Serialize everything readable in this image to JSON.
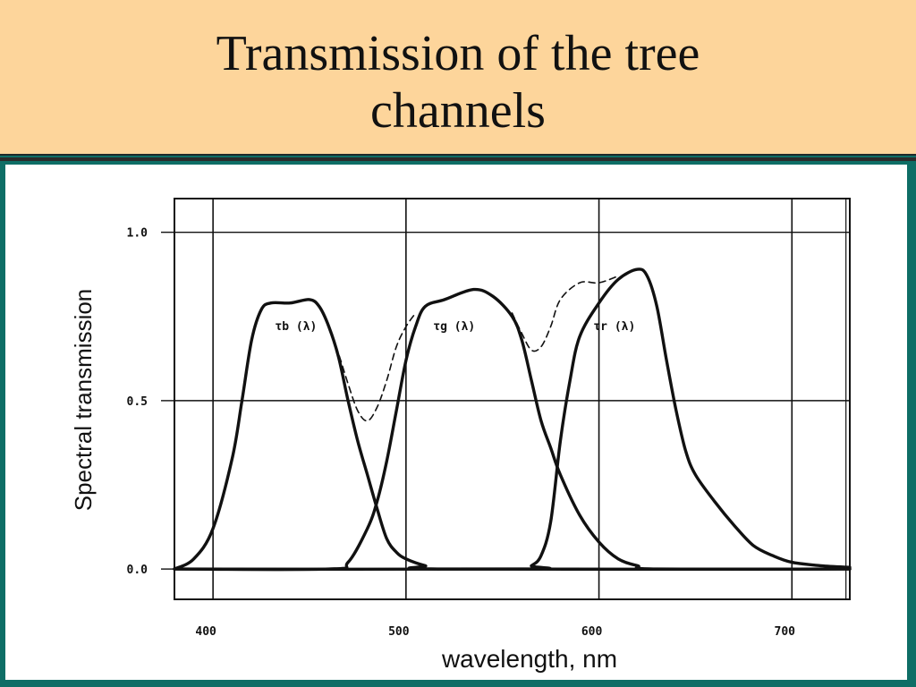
{
  "slide": {
    "title_line1": "Transmission of the tree",
    "title_line2": "channels"
  },
  "colors": {
    "header_bg": "#fdd59b",
    "frame": "#0e6e66",
    "panel": "#ffffff",
    "ink": "#111111"
  },
  "chart_data": {
    "type": "line",
    "title": "",
    "xlabel": "wavelength, nm",
    "ylabel": "Spectral transmission",
    "xlim": [
      380,
      730
    ],
    "ylim": [
      -0.09,
      1.1
    ],
    "xticks": [
      {
        "value": 400,
        "label": "400"
      },
      {
        "value": 500,
        "label": "500"
      },
      {
        "value": 600,
        "label": "600"
      },
      {
        "value": 700,
        "label": "700"
      }
    ],
    "yticks": [
      {
        "value": 0.0,
        "label": "0.0"
      },
      {
        "value": 0.5,
        "label": "0.5"
      },
      {
        "value": 1.0,
        "label": "1.0"
      }
    ],
    "grid": true,
    "series": [
      {
        "name": "τb (λ)",
        "style": "solid",
        "label_at": [
          443,
          0.71
        ],
        "points": [
          [
            380,
            0.0
          ],
          [
            390,
            0.03
          ],
          [
            400,
            0.12
          ],
          [
            410,
            0.33
          ],
          [
            415,
            0.5
          ],
          [
            420,
            0.68
          ],
          [
            425,
            0.77
          ],
          [
            430,
            0.79
          ],
          [
            440,
            0.79
          ],
          [
            450,
            0.8
          ],
          [
            455,
            0.78
          ],
          [
            460,
            0.72
          ],
          [
            465,
            0.63
          ],
          [
            470,
            0.5
          ],
          [
            475,
            0.38
          ],
          [
            480,
            0.28
          ],
          [
            485,
            0.18
          ],
          [
            490,
            0.09
          ],
          [
            495,
            0.05
          ],
          [
            500,
            0.03
          ],
          [
            510,
            0.01
          ],
          [
            520,
            0.0
          ],
          [
            730,
            0.0
          ]
        ]
      },
      {
        "name": "τg (λ)",
        "style": "solid",
        "label_at": [
          525,
          0.71
        ],
        "points": [
          [
            380,
            0.0
          ],
          [
            460,
            0.0
          ],
          [
            470,
            0.02
          ],
          [
            480,
            0.12
          ],
          [
            485,
            0.2
          ],
          [
            490,
            0.32
          ],
          [
            495,
            0.47
          ],
          [
            500,
            0.62
          ],
          [
            505,
            0.72
          ],
          [
            510,
            0.78
          ],
          [
            520,
            0.8
          ],
          [
            535,
            0.83
          ],
          [
            545,
            0.81
          ],
          [
            555,
            0.75
          ],
          [
            560,
            0.68
          ],
          [
            565,
            0.56
          ],
          [
            570,
            0.44
          ],
          [
            575,
            0.36
          ],
          [
            580,
            0.28
          ],
          [
            590,
            0.16
          ],
          [
            600,
            0.08
          ],
          [
            610,
            0.03
          ],
          [
            620,
            0.01
          ],
          [
            630,
            0.0
          ],
          [
            730,
            0.0
          ]
        ]
      },
      {
        "name": "τr (λ)",
        "style": "solid",
        "label_at": [
          608,
          0.71
        ],
        "points": [
          [
            380,
            0.0
          ],
          [
            560,
            0.0
          ],
          [
            565,
            0.01
          ],
          [
            570,
            0.04
          ],
          [
            575,
            0.14
          ],
          [
            580,
            0.38
          ],
          [
            585,
            0.56
          ],
          [
            590,
            0.69
          ],
          [
            600,
            0.79
          ],
          [
            610,
            0.86
          ],
          [
            620,
            0.89
          ],
          [
            625,
            0.87
          ],
          [
            630,
            0.78
          ],
          [
            635,
            0.62
          ],
          [
            640,
            0.47
          ],
          [
            645,
            0.35
          ],
          [
            650,
            0.28
          ],
          [
            660,
            0.2
          ],
          [
            670,
            0.13
          ],
          [
            680,
            0.07
          ],
          [
            690,
            0.04
          ],
          [
            700,
            0.02
          ],
          [
            715,
            0.01
          ],
          [
            730,
            0.005
          ]
        ]
      },
      {
        "name": "",
        "style": "dashed",
        "points": [
          [
            455,
            0.78
          ],
          [
            460,
            0.72
          ],
          [
            465,
            0.64
          ],
          [
            470,
            0.55
          ],
          [
            475,
            0.47
          ],
          [
            480,
            0.44
          ],
          [
            485,
            0.48
          ],
          [
            490,
            0.56
          ],
          [
            495,
            0.66
          ],
          [
            500,
            0.72
          ],
          [
            505,
            0.76
          ]
        ]
      },
      {
        "name": "",
        "style": "dashed",
        "points": [
          [
            555,
            0.76
          ],
          [
            560,
            0.7
          ],
          [
            565,
            0.65
          ],
          [
            570,
            0.66
          ],
          [
            575,
            0.72
          ],
          [
            580,
            0.8
          ],
          [
            590,
            0.85
          ],
          [
            600,
            0.85
          ],
          [
            610,
            0.87
          ]
        ]
      }
    ]
  }
}
